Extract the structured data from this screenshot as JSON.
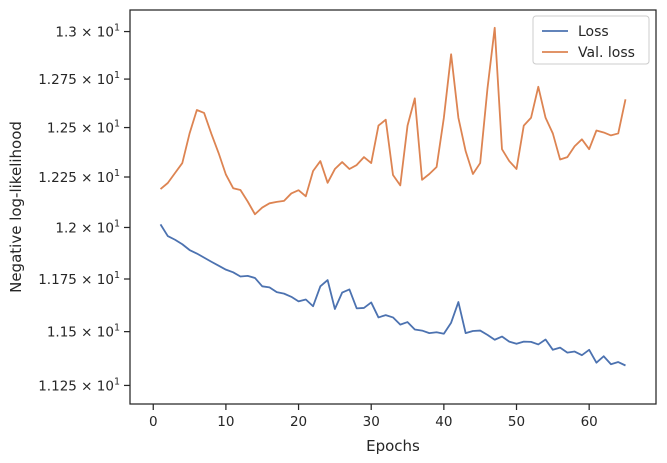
{
  "chart_data": {
    "type": "line",
    "title": "",
    "xlabel": "Epochs",
    "ylabel": "Negative log-likelihood",
    "xlim": [
      -3.2,
      69.2
    ],
    "ylim": [
      11.165,
      13.115
    ],
    "y_scale": "log",
    "grid": false,
    "legend_position": "top-right",
    "x_ticks": [
      0,
      10,
      20,
      30,
      40,
      50,
      60
    ],
    "x_tick_labels": [
      "0",
      "10",
      "20",
      "30",
      "40",
      "50",
      "60"
    ],
    "y_ticks": [
      11.25,
      11.5,
      11.75,
      12.0,
      12.25,
      12.5,
      12.75,
      13.0
    ],
    "y_tick_labels": [
      {
        "mantissa": "1.125",
        "exp": "1"
      },
      {
        "mantissa": "1.15",
        "exp": "1"
      },
      {
        "mantissa": "1.175",
        "exp": "1"
      },
      {
        "mantissa": "1.2",
        "exp": "1"
      },
      {
        "mantissa": "1.225",
        "exp": "1"
      },
      {
        "mantissa": "1.25",
        "exp": "1"
      },
      {
        "mantissa": "1.275",
        "exp": "1"
      },
      {
        "mantissa": "1.3",
        "exp": "1"
      }
    ],
    "y_tick_times": "×",
    "y_tick_base": "10",
    "series": [
      {
        "name": "Loss",
        "color": "#4c72b0",
        "x": [
          1,
          2,
          3,
          4,
          5,
          6,
          7,
          8,
          9,
          10,
          11,
          12,
          13,
          14,
          15,
          16,
          17,
          18,
          19,
          20,
          21,
          22,
          23,
          24,
          25,
          26,
          27,
          28,
          29,
          30,
          31,
          32,
          33,
          34,
          35,
          36,
          37,
          38,
          39,
          40,
          41,
          42,
          43,
          44,
          45,
          46,
          47,
          48,
          49,
          50,
          51,
          52,
          53,
          54,
          55,
          56,
          57,
          58,
          59,
          60,
          61,
          62,
          63,
          64,
          65
        ],
        "y": [
          12.015,
          11.958,
          11.94,
          11.918,
          11.89,
          11.873,
          11.853,
          11.833,
          11.814,
          11.795,
          11.782,
          11.762,
          11.765,
          11.755,
          11.715,
          11.71,
          11.687,
          11.68,
          11.665,
          11.643,
          11.652,
          11.62,
          11.715,
          11.745,
          11.607,
          11.685,
          11.7,
          11.61,
          11.612,
          11.638,
          11.567,
          11.578,
          11.567,
          11.533,
          11.545,
          11.51,
          11.505,
          11.493,
          11.497,
          11.49,
          11.542,
          11.64,
          11.493,
          11.503,
          11.505,
          11.485,
          11.462,
          11.477,
          11.453,
          11.443,
          11.453,
          11.452,
          11.44,
          11.463,
          11.415,
          11.425,
          11.402,
          11.407,
          11.39,
          11.415,
          11.355,
          11.385,
          11.348,
          11.358,
          11.342
        ]
      },
      {
        "name": "Val. loss",
        "color": "#dd8452",
        "x": [
          1,
          2,
          3,
          4,
          5,
          6,
          7,
          8,
          9,
          10,
          11,
          12,
          13,
          14,
          15,
          16,
          17,
          18,
          19,
          20,
          21,
          22,
          23,
          24,
          25,
          26,
          27,
          28,
          29,
          30,
          31,
          32,
          33,
          34,
          35,
          36,
          37,
          38,
          39,
          40,
          41,
          42,
          43,
          44,
          45,
          46,
          47,
          48,
          49,
          50,
          51,
          52,
          53,
          54,
          55,
          56,
          57,
          58,
          59,
          60,
          61,
          62,
          63,
          64,
          65
        ],
        "y": [
          12.19,
          12.22,
          12.27,
          12.32,
          12.47,
          12.59,
          12.575,
          12.468,
          12.37,
          12.262,
          12.194,
          12.185,
          12.128,
          12.065,
          12.098,
          12.119,
          12.126,
          12.131,
          12.168,
          12.184,
          12.154,
          12.28,
          12.33,
          12.221,
          12.29,
          12.325,
          12.29,
          12.31,
          12.35,
          12.32,
          12.51,
          12.54,
          12.26,
          12.208,
          12.51,
          12.65,
          12.236,
          12.265,
          12.3,
          12.55,
          12.88,
          12.55,
          12.38,
          12.265,
          12.32,
          12.7,
          13.02,
          12.39,
          12.33,
          12.29,
          12.51,
          12.55,
          12.71,
          12.55,
          12.47,
          12.338,
          12.35,
          12.405,
          12.44,
          12.39,
          12.485,
          12.475,
          12.46,
          12.47,
          12.645
        ]
      }
    ]
  }
}
